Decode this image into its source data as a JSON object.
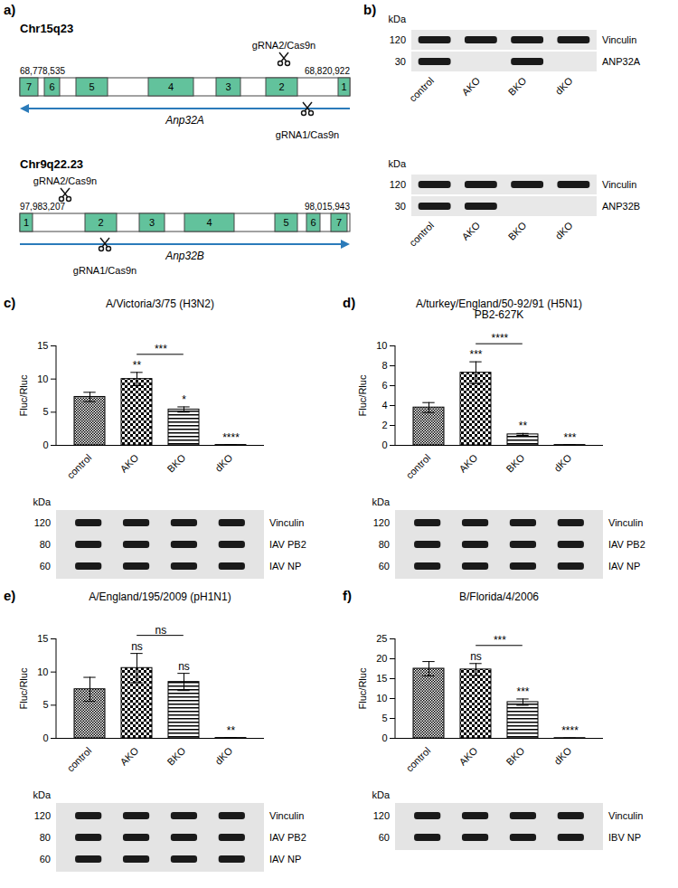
{
  "panels": {
    "a": {
      "letter": "a)",
      "genes": [
        {
          "chromosome": "Chr15q23",
          "start": "68,778,535",
          "end": "68,820,922",
          "gene": "Anp32A",
          "direction": "reverse",
          "exons": [
            "7",
            "6",
            "5",
            "4",
            "3",
            "2",
            "1"
          ],
          "guides": [
            {
              "label": "gRNA2/Cas9n",
              "side": "above"
            },
            {
              "label": "gRNA1/Cas9n",
              "side": "below"
            }
          ]
        },
        {
          "chromosome": "Chr9q22.23",
          "start": "97,983,207",
          "end": "98,015,943",
          "gene": "Anp32B",
          "direction": "forward",
          "exons": [
            "1",
            "2",
            "3",
            "4",
            "5",
            "6",
            "7"
          ],
          "guides": [
            {
              "label": "gRNA2/Cas9n",
              "side": "above"
            },
            {
              "label": "gRNA1/Cas9n",
              "side": "below"
            }
          ]
        }
      ]
    },
    "b": {
      "letter": "b)",
      "lanes": [
        "control",
        "AKO",
        "BKO",
        "dKO"
      ],
      "blots": [
        {
          "kda_label": "kDa",
          "rows": [
            {
              "label": "Vinculin",
              "kda": 120,
              "present": [
                true,
                true,
                true,
                true
              ]
            },
            {
              "label": "ANP32A",
              "kda": 30,
              "present": [
                true,
                false,
                true,
                false
              ]
            }
          ]
        },
        {
          "kda_label": "kDa",
          "rows": [
            {
              "label": "Vinculin",
              "kda": 120,
              "present": [
                true,
                true,
                true,
                true
              ]
            },
            {
              "label": "ANP32B",
              "kda": 30,
              "present": [
                true,
                true,
                false,
                false
              ]
            }
          ]
        }
      ]
    }
  },
  "chart_data": [
    {
      "letter": "c)",
      "type": "bar",
      "title": "A/Victoria/3/75 (H3N2)",
      "categories": [
        "control",
        "AKO",
        "BKO",
        "dKO"
      ],
      "values": [
        7.3,
        10.0,
        5.4,
        0.05
      ],
      "errors": [
        0.7,
        1.0,
        0.4,
        0.02
      ],
      "significance": [
        null,
        "**",
        "*",
        "****"
      ],
      "comparison": {
        "from": "AKO",
        "to": "BKO",
        "label": "***"
      },
      "y_label": "Fluc/Rluc",
      "ylim": [
        0,
        15
      ],
      "yticks": [
        0,
        5,
        10,
        15
      ],
      "color": "#000000",
      "blot": {
        "kda_label": "kDa",
        "rows": [
          {
            "label": "Vinculin",
            "kda": 120
          },
          {
            "label": "IAV PB2",
            "kda": 80
          },
          {
            "label": "IAV NP",
            "kda": 60
          }
        ]
      }
    },
    {
      "letter": "d)",
      "type": "bar",
      "title": "A/turkey/England/50-92/91 (H5N1)",
      "subtitle": "PB2-627K",
      "categories": [
        "control",
        "AKO",
        "BKO",
        "dKO"
      ],
      "values": [
        3.8,
        7.3,
        1.1,
        0.03
      ],
      "errors": [
        0.5,
        1.1,
        0.1,
        0.01
      ],
      "significance": [
        null,
        "***",
        "**",
        "***"
      ],
      "comparison": {
        "from": "AKO",
        "to": "BKO",
        "label": "****"
      },
      "y_label": "Fluc/Rluc",
      "ylim": [
        0,
        10
      ],
      "yticks": [
        0,
        2,
        4,
        6,
        8,
        10
      ],
      "color": "#000000",
      "blot": {
        "kda_label": "kDa",
        "rows": [
          {
            "label": "Vinculin",
            "kda": 120
          },
          {
            "label": "IAV PB2",
            "kda": 80
          },
          {
            "label": "IAV NP",
            "kda": 60
          }
        ]
      }
    },
    {
      "letter": "e)",
      "type": "bar",
      "title": "A/England/195/2009 (pH1N1)",
      "categories": [
        "control",
        "AKO",
        "BKO",
        "dKO"
      ],
      "values": [
        7.4,
        10.6,
        8.5,
        0.05
      ],
      "errors": [
        1.8,
        2.2,
        1.3,
        0.02
      ],
      "significance": [
        null,
        "ns",
        "ns",
        "**"
      ],
      "comparison": {
        "from": "AKO",
        "to": "BKO",
        "label": "ns"
      },
      "y_label": "Fluc/Rluc",
      "ylim": [
        0,
        15
      ],
      "yticks": [
        0,
        5,
        10,
        15
      ],
      "color": "#000000",
      "blot": {
        "kda_label": "kDa",
        "rows": [
          {
            "label": "Vinculin",
            "kda": 120
          },
          {
            "label": "IAV PB2",
            "kda": 80
          },
          {
            "label": "IAV NP",
            "kda": 60
          }
        ]
      }
    },
    {
      "letter": "f)",
      "type": "bar",
      "title": "B/Florida/4/2006",
      "categories": [
        "control",
        "AKO",
        "BKO",
        "dKO"
      ],
      "values": [
        17.5,
        17.3,
        9.1,
        0.05
      ],
      "errors": [
        1.8,
        1.5,
        0.8,
        0.02
      ],
      "significance": [
        null,
        "ns",
        "***",
        "****"
      ],
      "comparison": {
        "from": "AKO",
        "to": "BKO",
        "label": "***"
      },
      "y_label": "Fluc/Rluc",
      "ylim": [
        0,
        25
      ],
      "yticks": [
        0,
        5,
        10,
        15,
        20,
        25
      ],
      "color": "#000000",
      "blot": {
        "kda_label": "kDa",
        "rows": [
          {
            "label": "Vinculin",
            "kda": 120
          },
          {
            "label": "IBV NP",
            "kda": 60
          }
        ]
      }
    }
  ]
}
